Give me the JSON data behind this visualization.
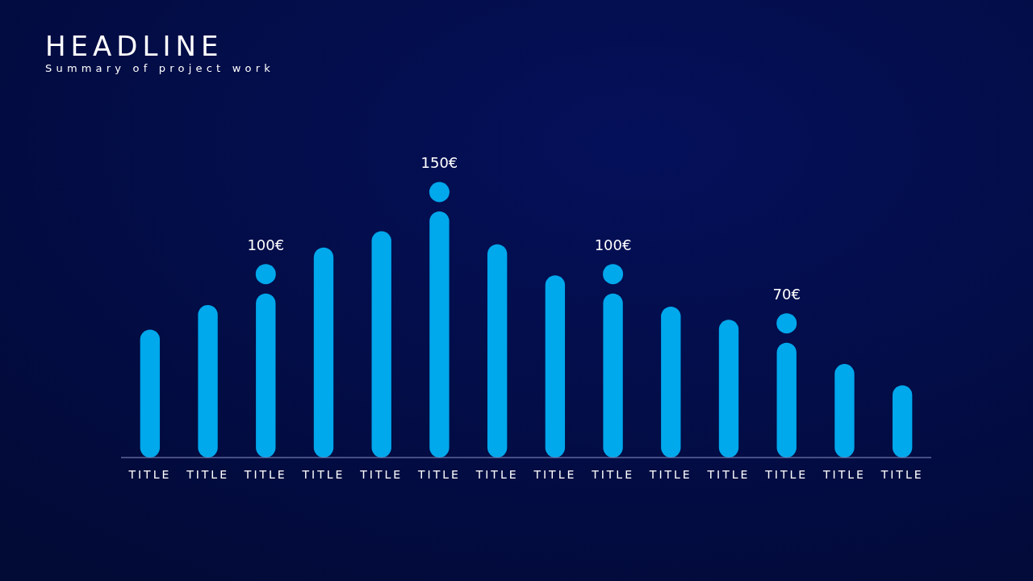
{
  "chart_data": {
    "type": "bar",
    "title": "HEADLINE",
    "subtitle": "Summary of project work",
    "categories": [
      "TITLE",
      "TITLE",
      "TITLE",
      "TITLE",
      "TITLE",
      "TITLE",
      "TITLE",
      "TITLE",
      "TITLE",
      "TITLE",
      "TITLE",
      "TITLE",
      "TITLE",
      "TITLE"
    ],
    "values": [
      78,
      93,
      100,
      128,
      138,
      150,
      130,
      111,
      100,
      92,
      84,
      70,
      57,
      44
    ],
    "value_labels": [
      null,
      null,
      "100€",
      null,
      null,
      "150€",
      null,
      null,
      "100€",
      null,
      null,
      "70€",
      null,
      null
    ],
    "color": "#00a8ec",
    "tick_labels": "x"
  }
}
